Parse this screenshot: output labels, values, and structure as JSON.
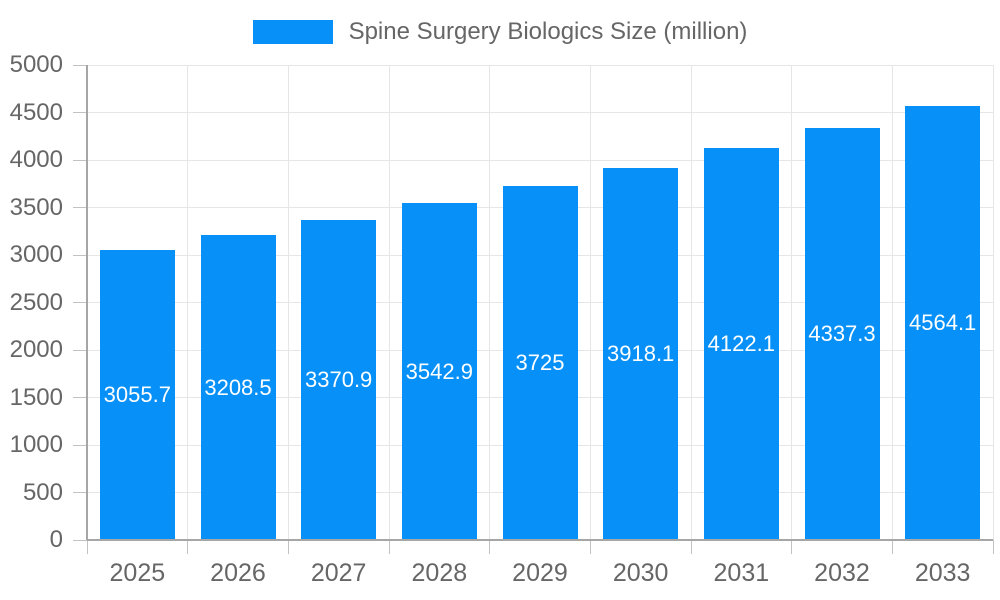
{
  "legend": {
    "label": "Spine Surgery Biologics Size (million)"
  },
  "chart_data": {
    "type": "bar",
    "title": "Spine Surgery Biologics Size (million)",
    "categories": [
      "2025",
      "2026",
      "2027",
      "2028",
      "2029",
      "2030",
      "2031",
      "2032",
      "2033"
    ],
    "series": [
      {
        "name": "Spine Surgery Biologics Size (million)",
        "values": [
          3055.7,
          3208.5,
          3370.9,
          3542.9,
          3725,
          3918.1,
          4122.1,
          4337.3,
          4564.1
        ]
      }
    ],
    "xlabel": "",
    "ylabel": "",
    "ylim": [
      0,
      5000
    ],
    "ytick_step": 500,
    "grid": true,
    "legend_position": "top",
    "data_labels": "inside-center",
    "colors": {
      "bar": "#0690f8",
      "grid": "#e6e6e6",
      "axis": "#a6a6a6",
      "tick": "#c2c2c2",
      "tick_label": "#666666",
      "data_label": "#ffffff",
      "legend_label": "#666666"
    }
  }
}
